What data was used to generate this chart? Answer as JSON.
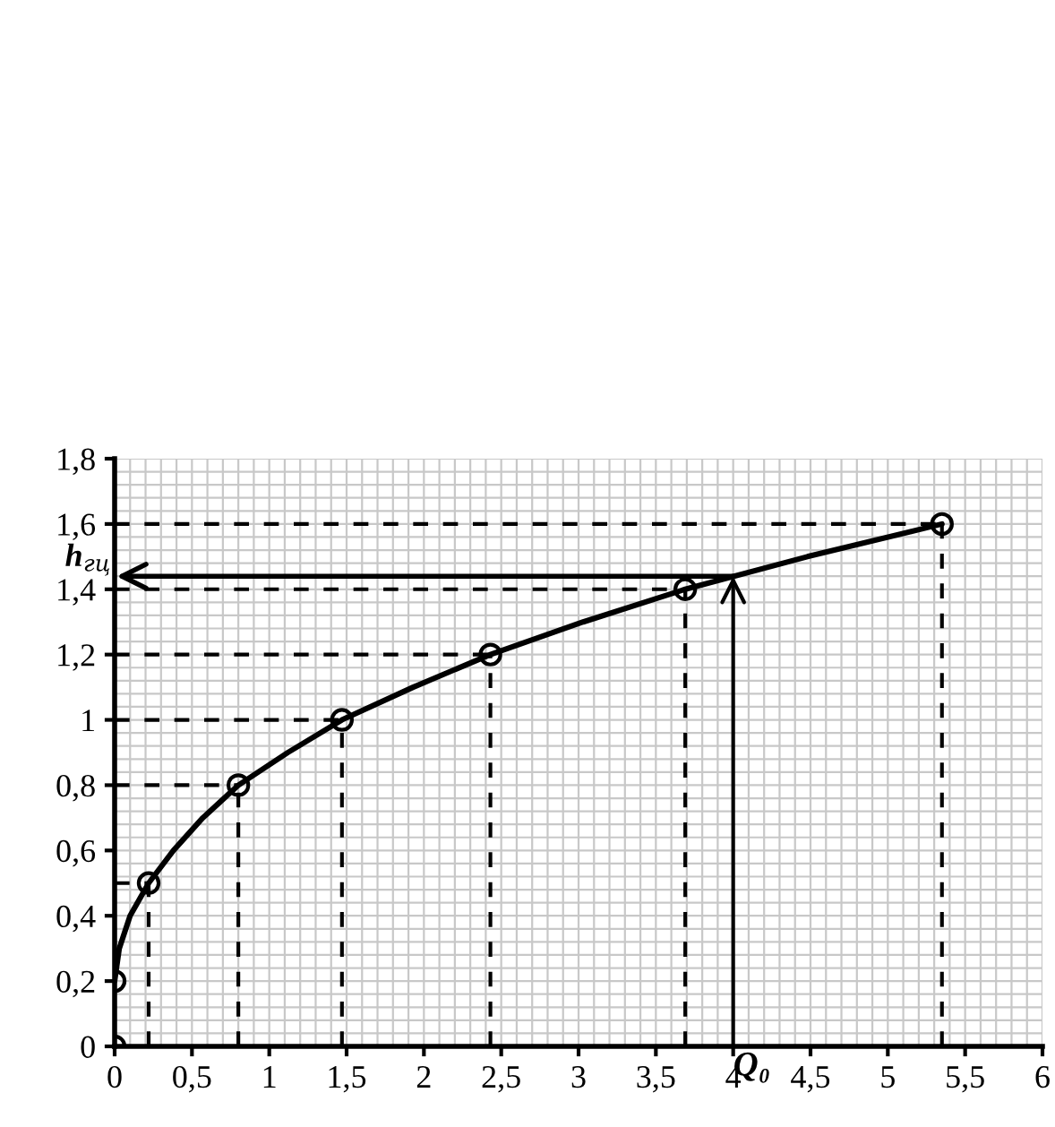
{
  "chart_data": {
    "type": "scatter",
    "series": [
      {
        "type": "line",
        "marker": "none",
        "color": "#000000",
        "x": [
          0,
          0.03,
          0.1,
          0.22,
          0.38,
          0.57,
          0.8,
          1.12,
          1.47,
          1.93,
          2.43,
          3.03,
          3.69,
          4.48,
          5.35
        ],
        "values": [
          0.2,
          0.3,
          0.4,
          0.5,
          0.6,
          0.7,
          0.8,
          0.9,
          1.0,
          1.1,
          1.2,
          1.3,
          1.4,
          1.5,
          1.6
        ]
      },
      {
        "marker": "circle",
        "color": "#000000",
        "x": [
          0,
          0,
          0.22,
          0.8,
          1.47,
          2.43,
          3.69,
          5.35
        ],
        "values": [
          0,
          0.2,
          0.5,
          0.8,
          1.0,
          1.2,
          1.4,
          1.6
        ],
        "errors": [
          null,
          null,
          [
            0,
            0.5
          ],
          [
            0,
            0.8
          ],
          [
            0,
            1.0
          ],
          [
            0,
            1.2
          ],
          [
            0,
            1.4
          ],
          [
            0,
            1.6
          ]
        ],
        "xerrors": [
          null,
          null,
          [
            0,
            0.22
          ],
          [
            0,
            0.8
          ],
          [
            0,
            1.47
          ],
          [
            0,
            2.43
          ],
          [
            0,
            3.69
          ],
          [
            0,
            5.35
          ]
        ]
      }
    ],
    "line_style": "solid",
    "grid": true,
    "xlim": [
      0,
      6
    ],
    "ylim": [
      0,
      1.8
    ],
    "xticks": [
      0,
      {
        "value": 0.5,
        "label": "0,5"
      },
      1,
      {
        "value": 1.5,
        "label": "1,5"
      },
      2,
      {
        "value": 2.5,
        "label": "2,5"
      },
      3,
      {
        "value": 3.5,
        "label": "3,5"
      },
      4,
      {
        "value": 4.5,
        "label": "4,5"
      },
      5,
      {
        "value": 5.5,
        "label": "5,5"
      },
      6
    ],
    "yticks": [
      0,
      {
        "value": 0.2,
        "label": "0,2"
      },
      {
        "value": 0.4,
        "label": "0,4"
      },
      {
        "value": 0.6,
        "label": "0,6"
      },
      {
        "value": 0.8,
        "label": "0,8"
      },
      1,
      {
        "value": 1.2,
        "label": "1,2"
      },
      {
        "value": 1.4,
        "label": "1,4"
      },
      {
        "value": 1.6,
        "label": "1,6"
      },
      {
        "value": 1.8,
        "label": "1,8"
      }
    ],
    "annotations": [
      {
        "text": "Q₀",
        "x": 4,
        "y": 1.44
      },
      {
        "text": "h$_{гц}$",
        "x": 4,
        "y": 1.44
      }
    ]
  }
}
